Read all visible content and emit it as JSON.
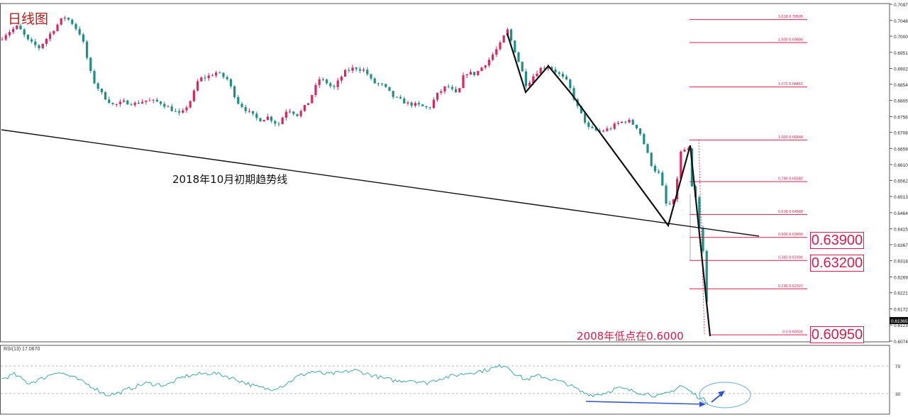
{
  "title": "日线图",
  "trendline_label": "2018年10月初期趋势线",
  "low_label": "2008年低点在0.6000",
  "key_levels": [
    "0.63900",
    "0.63200",
    "0.60950"
  ],
  "current_price": "0.61365",
  "rsi_label": "RSI(13) 17.0670",
  "colors": {
    "bull": "#e0245e",
    "bear": "#1f8f86",
    "fib": "#d81b48",
    "rsi": "#2aa198",
    "arrow": "#3355cc"
  },
  "chart_data": {
    "type": "candlestick",
    "price_axis": {
      "ylim": [
        0.6074,
        0.7097
      ],
      "ticks": [
        "0.70970",
        "0.70480",
        "0.70000",
        "0.69510",
        "0.69020",
        "0.68540",
        "0.68050",
        "0.67560",
        "0.67080",
        "0.66590",
        "0.66100",
        "0.65620",
        "0.65130",
        "0.64640",
        "0.64150",
        "0.63670",
        "0.63180",
        "0.62690",
        "0.62210",
        "0.61720",
        "0.61230",
        "0.60740"
      ]
    },
    "fibonacci": [
      {
        "ratio": "1.618",
        "value": "0.70505"
      },
      {
        "ratio": "1.500",
        "value": "0.69806"
      },
      {
        "ratio": "1.272",
        "value": "0.68457"
      },
      {
        "ratio": "1.000",
        "value": "0.66848"
      },
      {
        "ratio": "0.786",
        "value": "0.65582"
      },
      {
        "ratio": "0.618",
        "value": "0.64588"
      },
      {
        "ratio": "0.500",
        "value": "0.63890"
      },
      {
        "ratio": "0.382",
        "value": "0.63191"
      },
      {
        "ratio": "0.236",
        "value": "0.62327"
      },
      {
        "ratio": "0.0",
        "value": "0.60931"
      }
    ],
    "rsi": {
      "period": 13,
      "value": 17.067,
      "ylim": [
        0,
        100
      ],
      "levels": [
        70,
        30
      ]
    }
  }
}
